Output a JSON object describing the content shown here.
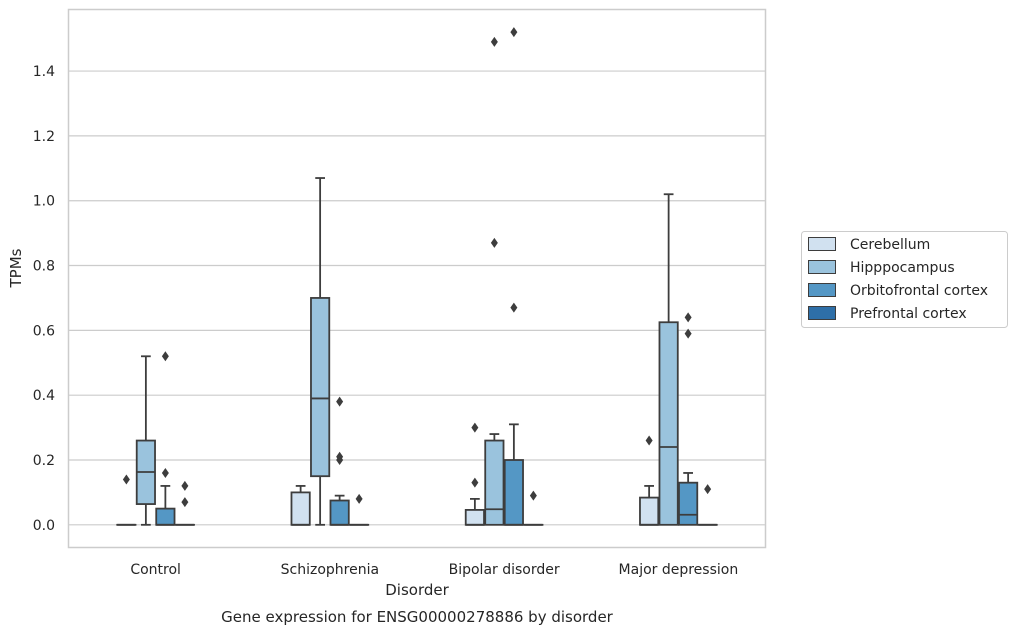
{
  "chart_data": {
    "type": "box",
    "xlabel": "Disorder",
    "ylabel": "TPMs",
    "caption": "Gene expression for ENSG00000278886 by disorder",
    "categories": [
      "Control",
      "Schizophrenia",
      "Bipolar disorder",
      "Major depression"
    ],
    "ylim": [
      -0.07,
      1.59
    ],
    "yticks": [
      0.0,
      0.2,
      0.4,
      0.6,
      0.8,
      1.0,
      1.2,
      1.4
    ],
    "ytick_labels": [
      "0.0",
      "0.2",
      "0.4",
      "0.6",
      "0.8",
      "1.0",
      "1.2",
      "1.4"
    ],
    "grid": "horizontal",
    "legend_position": "right",
    "colors": {
      "background": "#ffffff",
      "grid": "#cccccc",
      "frame": "#cccccc",
      "box_line": "#3d3d3d"
    },
    "series": [
      {
        "name": "Cerebellum",
        "color": "#d1e1f0",
        "boxes": [
          {
            "whislo": 0.0,
            "q1": 0.0,
            "med": 0.0,
            "q3": 0.0,
            "whishi": 0.0,
            "fliers": [
              0.14
            ]
          },
          {
            "whislo": 0.0,
            "q1": 0.0,
            "med": 0.0,
            "q3": 0.1,
            "whishi": 0.12,
            "fliers": []
          },
          {
            "whislo": 0.0,
            "q1": 0.0,
            "med": 0.0,
            "q3": 0.046,
            "whishi": 0.08,
            "fliers": [
              0.13,
              0.3
            ]
          },
          {
            "whislo": 0.0,
            "q1": 0.0,
            "med": 0.0,
            "q3": 0.084,
            "whishi": 0.12,
            "fliers": [
              0.26
            ]
          }
        ]
      },
      {
        "name": "Hipppocampus",
        "color": "#9ac3dd",
        "boxes": [
          {
            "whislo": 0.0,
            "q1": 0.064,
            "med": 0.163,
            "q3": 0.26,
            "whishi": 0.52,
            "fliers": []
          },
          {
            "whislo": 0.0,
            "q1": 0.15,
            "med": 0.39,
            "q3": 0.7,
            "whishi": 1.07,
            "fliers": []
          },
          {
            "whislo": 0.0,
            "q1": 0.0,
            "med": 0.048,
            "q3": 0.26,
            "whishi": 0.28,
            "fliers": [
              0.87,
              1.49
            ]
          },
          {
            "whislo": 0.0,
            "q1": 0.0,
            "med": 0.24,
            "q3": 0.625,
            "whishi": 1.02,
            "fliers": []
          }
        ]
      },
      {
        "name": "Orbitofrontal cortex",
        "color": "#5497c5",
        "boxes": [
          {
            "whislo": 0.0,
            "q1": 0.0,
            "med": 0.0,
            "q3": 0.05,
            "whishi": 0.12,
            "fliers": [
              0.16,
              0.52
            ]
          },
          {
            "whislo": 0.0,
            "q1": 0.0,
            "med": 0.0,
            "q3": 0.075,
            "whishi": 0.09,
            "fliers": [
              0.2,
              0.21,
              0.38
            ]
          },
          {
            "whislo": 0.0,
            "q1": 0.0,
            "med": 0.0,
            "q3": 0.2,
            "whishi": 0.31,
            "fliers": [
              0.67,
              1.52
            ]
          },
          {
            "whislo": 0.0,
            "q1": 0.0,
            "med": 0.031,
            "q3": 0.13,
            "whishi": 0.16,
            "fliers": [
              0.59,
              0.64
            ]
          }
        ]
      },
      {
        "name": "Prefrontal cortex",
        "color": "#2e6fa8",
        "boxes": [
          {
            "whislo": 0.0,
            "q1": 0.0,
            "med": 0.0,
            "q3": 0.0,
            "whishi": 0.0,
            "fliers": [
              0.07,
              0.12
            ]
          },
          {
            "whislo": 0.0,
            "q1": 0.0,
            "med": 0.0,
            "q3": 0.0,
            "whishi": 0.0,
            "fliers": [
              0.08
            ]
          },
          {
            "whislo": 0.0,
            "q1": 0.0,
            "med": 0.0,
            "q3": 0.0,
            "whishi": 0.0,
            "fliers": [
              0.09
            ]
          },
          {
            "whislo": 0.0,
            "q1": 0.0,
            "med": 0.0,
            "q3": 0.0,
            "whishi": 0.0,
            "fliers": [
              0.11
            ]
          }
        ]
      }
    ]
  }
}
